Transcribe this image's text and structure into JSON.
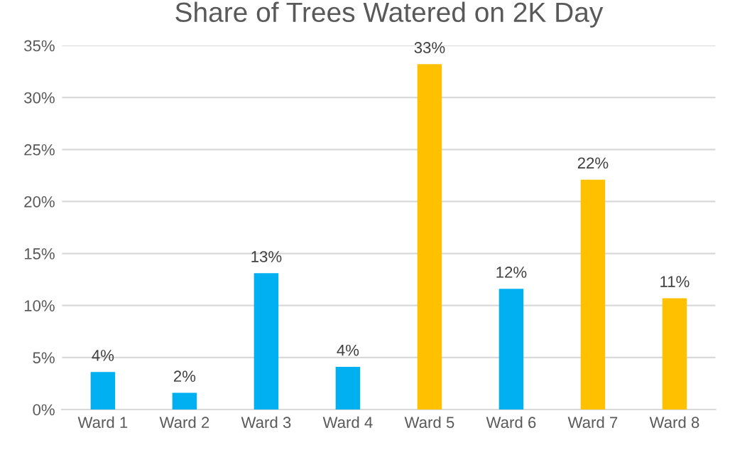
{
  "chart_data": {
    "type": "bar",
    "title": "Share of Trees Watered on 2K Day",
    "categories": [
      "Ward 1",
      "Ward 2",
      "Ward 3",
      "Ward 4",
      "Ward 5",
      "Ward 6",
      "Ward 7",
      "Ward 8"
    ],
    "values": [
      3.6,
      1.6,
      13.1,
      4.1,
      33.2,
      11.6,
      22.1,
      10.7
    ],
    "colors": [
      "#00b0f0",
      "#00b0f0",
      "#00b0f0",
      "#00b0f0",
      "#ffc000",
      "#00b0f0",
      "#ffc000",
      "#ffc000"
    ],
    "value_labels": [
      "4%",
      "2%",
      "13%",
      "4%",
      "33%",
      "12%",
      "22%",
      "11%"
    ],
    "ylim": [
      0,
      35
    ],
    "yticks": [
      {
        "value": 0,
        "label": "0%"
      },
      {
        "value": 5,
        "label": "5%"
      },
      {
        "value": 10,
        "label": "10%"
      },
      {
        "value": 15,
        "label": "15%"
      },
      {
        "value": 20,
        "label": "20%"
      },
      {
        "value": 25,
        "label": "25%"
      },
      {
        "value": 30,
        "label": "30%"
      },
      {
        "value": 35,
        "label": "35%"
      }
    ],
    "grid": "y",
    "legend": false
  }
}
